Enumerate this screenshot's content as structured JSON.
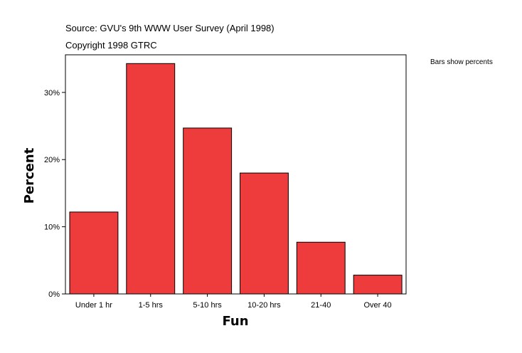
{
  "header": {
    "source": "Source: GVU's 9th WWW User Survey (April 1998)",
    "copyright": "Copyright 1998 GTRC"
  },
  "legend_note": "Bars show percents",
  "chart_data": {
    "type": "bar",
    "categories": [
      "Under 1 hr",
      "1-5 hrs",
      "5-10 hrs",
      "10-20 hrs",
      "21-40",
      "Over 40"
    ],
    "values": [
      12.2,
      34.3,
      24.7,
      18.0,
      7.7,
      2.8
    ],
    "xlabel": "Fun",
    "ylabel": "Percent",
    "ylim": [
      0,
      35.6
    ],
    "yticks": [
      0,
      10,
      20,
      30
    ],
    "ytick_labels": [
      "0%",
      "10%",
      "20%",
      "30%"
    ],
    "bar_color": "#ee3b3b",
    "grid": false
  }
}
